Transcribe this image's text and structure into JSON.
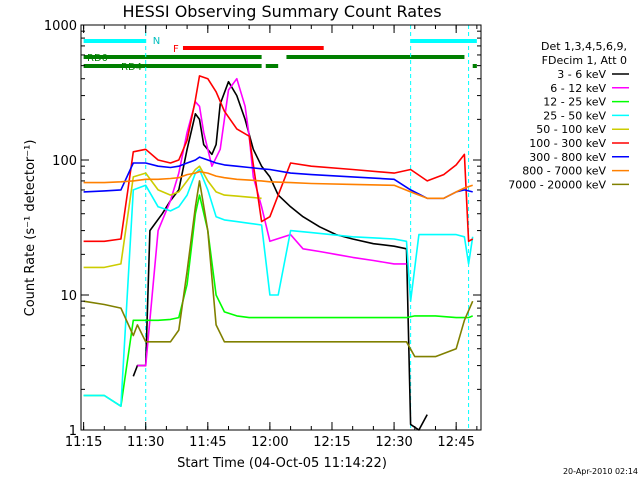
{
  "chart_data": {
    "type": "line",
    "title": "HESSI Observing Summary Count Rates",
    "xlabel": "Start Time (04-Oct-05 11:14:22)",
    "ylabel": "Count Rate (s⁻¹ detector⁻¹)",
    "yscale": "log",
    "ylim": [
      1,
      1000
    ],
    "xlim": [
      "11:14:22",
      "12:51"
    ],
    "x_ticks": [
      "11:15",
      "11:30",
      "11:45",
      "12:00",
      "12:15",
      "12:30",
      "12:45"
    ],
    "y_ticks": [
      "1",
      "10",
      "100",
      "1000"
    ],
    "grid": false,
    "legend_position": "right",
    "legend_header": [
      "Det 1,3,4,5,6,9,",
      "FDecim 1, Att 0"
    ],
    "footer_text": "20-Apr-2010 02:14",
    "band_labels": {
      "n": "N",
      "f": "F",
      "rd0": "RD0",
      "rd4": "RD4"
    },
    "bands": {
      "night": [
        [
          "11:15",
          "11:30"
        ],
        [
          "12:34",
          "12:50"
        ]
      ],
      "flare": [
        [
          "11:39",
          "12:13"
        ]
      ],
      "rd0": [
        [
          "11:15",
          "11:58"
        ],
        [
          "12:04",
          "12:47"
        ]
      ],
      "rd4": [
        [
          "11:15",
          "11:58"
        ],
        [
          "11:59",
          "12:02"
        ],
        [
          "12:49",
          "12:50"
        ]
      ]
    },
    "night_lines": [
      "11:30",
      "12:34",
      "12:48"
    ],
    "series": [
      {
        "name": "3 - 6 keV",
        "color": "#000000",
        "x": [
          "11:27",
          "11:28",
          "11:30",
          "11:31",
          "11:34",
          "11:36",
          "11:38",
          "11:40",
          "11:42",
          "11:43",
          "11:44",
          "11:46",
          "11:47",
          "11:48",
          "11:50",
          "11:52",
          "11:54",
          "11:56",
          "11:58",
          "12:00",
          "12:02",
          "12:05",
          "12:08",
          "12:12",
          "12:16",
          "12:20",
          "12:25",
          "12:30",
          "12:33",
          "12:34",
          "12:36",
          "12:38"
        ],
        "y": [
          2.5,
          3,
          3,
          30,
          40,
          50,
          60,
          120,
          220,
          200,
          130,
          110,
          130,
          260,
          380,
          300,
          200,
          120,
          90,
          75,
          55,
          45,
          38,
          32,
          28,
          26,
          24,
          23,
          22,
          1.1,
          1,
          1.3
        ]
      },
      {
        "name": "6 - 12 keV",
        "color": "#ff00ff",
        "x": [
          "11:28",
          "11:30",
          "11:33",
          "11:36",
          "11:38",
          "11:40",
          "11:42",
          "11:43",
          "11:44",
          "11:46",
          "11:48",
          "11:50",
          "11:52",
          "11:54",
          "11:55",
          "11:56",
          "11:58",
          "12:00",
          "12:05",
          "12:08",
          "12:12",
          "12:16",
          "12:20",
          "12:25",
          "12:30",
          "12:33"
        ],
        "y": [
          3,
          3,
          30,
          50,
          80,
          160,
          270,
          250,
          160,
          90,
          120,
          330,
          400,
          250,
          150,
          75,
          45,
          25,
          28,
          22,
          21,
          20,
          19,
          18,
          17,
          17
        ]
      },
      {
        "name": "12 - 25 keV",
        "color": "#00ff00",
        "x": [
          "11:15",
          "11:20",
          "11:24",
          "11:27",
          "11:30",
          "11:33",
          "11:36",
          "11:38",
          "11:40",
          "11:42",
          "11:43",
          "11:45",
          "11:47",
          "11:49",
          "11:52",
          "11:55",
          "11:58",
          "12:00",
          "12:10",
          "12:20",
          "12:30",
          "12:33",
          "12:35",
          "12:40",
          "12:45",
          "12:47",
          "12:48",
          "12:49"
        ],
        "y": [
          1.8,
          1.8,
          1.5,
          6.5,
          6.5,
          6.5,
          6.6,
          6.8,
          12,
          40,
          55,
          30,
          10,
          7.5,
          7,
          6.8,
          6.8,
          6.8,
          6.8,
          6.8,
          6.8,
          6.8,
          7,
          7,
          6.8,
          6.8,
          6.8,
          7
        ]
      },
      {
        "name": "25 - 50 keV",
        "color": "#00ffff",
        "x": [
          "11:15",
          "11:20",
          "11:24",
          "11:27",
          "11:30",
          "11:33",
          "11:36",
          "11:38",
          "11:40",
          "11:42",
          "11:43",
          "11:45",
          "11:47",
          "11:49",
          "11:52",
          "11:55",
          "11:58",
          "12:00",
          "12:02",
          "12:05",
          "12:10",
          "12:20",
          "12:30",
          "12:33",
          "12:34",
          "12:36",
          "12:40",
          "12:45",
          "12:47",
          "12:48",
          "12:49"
        ],
        "y": [
          1.8,
          1.8,
          1.5,
          60,
          65,
          45,
          42,
          45,
          55,
          80,
          85,
          60,
          38,
          36,
          35,
          34,
          33,
          10,
          10,
          30,
          29,
          27,
          26,
          25,
          9,
          28,
          28,
          28,
          27,
          17,
          27
        ]
      },
      {
        "name": "50 - 100 keV",
        "color": "#cccc00",
        "x": [
          "11:15",
          "11:20",
          "11:24",
          "11:27",
          "11:30",
          "11:33",
          "11:36",
          "11:38",
          "11:40",
          "11:42",
          "11:43",
          "11:45",
          "11:47",
          "11:49",
          "11:52",
          "11:55",
          "11:58"
        ],
        "y": [
          16,
          16,
          17,
          75,
          80,
          60,
          55,
          58,
          70,
          85,
          90,
          70,
          58,
          55,
          54,
          53,
          52
        ]
      },
      {
        "name": "100 - 300 keV",
        "color": "#ff0000",
        "x": [
          "11:15",
          "11:20",
          "11:24",
          "11:27",
          "11:30",
          "11:33",
          "11:36",
          "11:38",
          "11:40",
          "11:42",
          "11:43",
          "11:45",
          "11:47",
          "11:49",
          "11:52",
          "11:55",
          "11:58",
          "12:00",
          "12:05",
          "12:10",
          "12:20",
          "12:30",
          "12:34",
          "12:38",
          "12:42",
          "12:45",
          "12:47",
          "12:48",
          "12:49"
        ],
        "y": [
          25,
          25,
          26,
          115,
          120,
          100,
          95,
          100,
          140,
          280,
          420,
          400,
          320,
          230,
          170,
          150,
          35,
          38,
          95,
          90,
          85,
          80,
          85,
          70,
          78,
          92,
          110,
          25,
          26
        ]
      },
      {
        "name": "300 - 800 keV",
        "color": "#0000ff",
        "x": [
          "11:15",
          "11:20",
          "11:24",
          "11:27",
          "11:30",
          "11:33",
          "11:36",
          "11:38",
          "11:40",
          "11:42",
          "11:43",
          "11:45",
          "11:47",
          "11:49",
          "11:52",
          "11:55",
          "11:58",
          "12:00",
          "12:05",
          "12:10",
          "12:20",
          "12:30",
          "12:34",
          "12:38",
          "12:42",
          "12:45",
          "12:47",
          "12:49"
        ],
        "y": [
          58,
          59,
          60,
          95,
          95,
          90,
          88,
          90,
          95,
          100,
          105,
          100,
          95,
          92,
          90,
          88,
          86,
          85,
          80,
          78,
          75,
          72,
          60,
          52,
          52,
          58,
          60,
          58
        ]
      },
      {
        "name": "800 - 7000 keV",
        "color": "#ff8000",
        "x": [
          "11:15",
          "11:20",
          "11:24",
          "11:27",
          "11:30",
          "11:33",
          "11:36",
          "11:38",
          "11:40",
          "11:42",
          "11:43",
          "11:45",
          "11:47",
          "11:49",
          "11:52",
          "11:55",
          "11:58",
          "12:00",
          "12:05",
          "12:10",
          "12:20",
          "12:30",
          "12:34",
          "12:38",
          "12:42",
          "12:45",
          "12:47",
          "12:49"
        ],
        "y": [
          68,
          68,
          69,
          70,
          72,
          72,
          73,
          74,
          78,
          80,
          82,
          80,
          76,
          74,
          72,
          71,
          70,
          69,
          68,
          67,
          66,
          65,
          58,
          52,
          52,
          58,
          62,
          65
        ]
      },
      {
        "name": "7000 - 20000 keV",
        "color": "#808000",
        "x": [
          "11:15",
          "11:20",
          "11:24",
          "11:27",
          "11:28",
          "11:30",
          "11:33",
          "11:36",
          "11:38",
          "11:40",
          "11:42",
          "11:43",
          "11:45",
          "11:47",
          "11:49",
          "11:52",
          "11:55",
          "11:58",
          "12:00",
          "12:10",
          "12:20",
          "12:30",
          "12:33",
          "12:35",
          "12:40",
          "12:45",
          "12:47",
          "12:49"
        ],
        "y": [
          9,
          8.5,
          8,
          5,
          6,
          4.5,
          4.5,
          4.5,
          5.5,
          15,
          45,
          70,
          30,
          6,
          4.5,
          4.5,
          4.5,
          4.5,
          4.5,
          4.5,
          4.5,
          4.5,
          4.5,
          3.5,
          3.5,
          4,
          6.5,
          9
        ]
      }
    ]
  }
}
